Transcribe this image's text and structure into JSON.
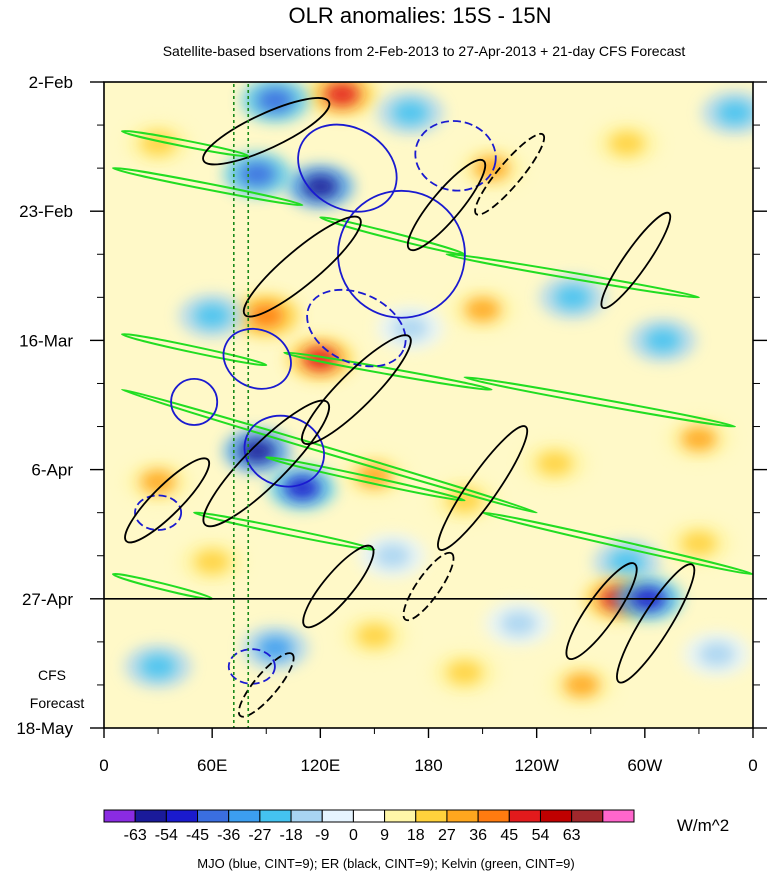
{
  "title": "OLR anomalies: 15S - 15N",
  "subtitle": "Satellite-based bservations from 2-Feb-2013 to 27-Apr-2013 + 21-day CFS Forecast",
  "forecast_label_line1": "CFS",
  "forecast_label_line2": "Forecast",
  "units": "W/m^2",
  "footer": "MJO (blue, CINT=9); ER (black, CINT=9); Kelvin (green, CINT=9)",
  "colors": {
    "mjo": "#1a1ad0",
    "er": "#000000",
    "kelvin": "#22dd22",
    "palette": [
      "#8a2be2",
      "#1a1a9a",
      "#1a1acd",
      "#3a6ee0",
      "#3c9ef0",
      "#44c3f0",
      "#a8d4f2",
      "#e6f4ff",
      "#ffffff",
      "#fff6a8",
      "#ffd23c",
      "#ffa71e",
      "#ff7b10",
      "#e31a1c",
      "#c00000",
      "#a0282c",
      "#ff66cc"
    ]
  },
  "chart_data": {
    "type": "heatmap",
    "title": "OLR anomalies: 15S - 15N",
    "x_ticks": [
      {
        "lon": 0,
        "label": "0"
      },
      {
        "lon": 60,
        "label": "60E"
      },
      {
        "lon": 120,
        "label": "120E"
      },
      {
        "lon": 180,
        "label": "180"
      },
      {
        "lon": 240,
        "label": "120W"
      },
      {
        "lon": 300,
        "label": "60W"
      },
      {
        "lon": 360,
        "label": "0"
      }
    ],
    "xlim": [
      0,
      360
    ],
    "y_ticks": [
      {
        "day": 0,
        "label": "2-Feb"
      },
      {
        "day": 21,
        "label": "23-Feb"
      },
      {
        "day": 42,
        "label": "16-Mar"
      },
      {
        "day": 63,
        "label": "6-Apr"
      },
      {
        "day": 84,
        "label": "27-Apr"
      },
      {
        "day": 105,
        "label": "18-May"
      }
    ],
    "ylim": [
      0,
      105
    ],
    "observation_end_day": 84,
    "reference_lons": [
      72,
      80
    ],
    "colorbar_levels": [
      -63,
      -54,
      -45,
      -36,
      -27,
      -18,
      -9,
      0,
      9,
      18,
      27,
      36,
      45,
      54,
      63
    ],
    "colorbar_labels": [
      "-63",
      "-54",
      "-45",
      "-36",
      "-27",
      "-18",
      "-9",
      "0",
      "9",
      "18",
      "27",
      "36",
      "45",
      "54",
      "63"
    ],
    "anomaly_blobs": [
      {
        "lon": 132,
        "day": 2,
        "v": 45
      },
      {
        "lon": 95,
        "day": 3,
        "v": -40
      },
      {
        "lon": 120,
        "day": 17,
        "v": -63
      },
      {
        "lon": 85,
        "day": 15,
        "v": -40
      },
      {
        "lon": 30,
        "day": 10,
        "v": 25
      },
      {
        "lon": 170,
        "day": 5,
        "v": -27
      },
      {
        "lon": 215,
        "day": 14,
        "v": 27
      },
      {
        "lon": 290,
        "day": 10,
        "v": 20
      },
      {
        "lon": 350,
        "day": 5,
        "v": -20
      },
      {
        "lon": 260,
        "day": 35,
        "v": -27
      },
      {
        "lon": 120,
        "day": 45,
        "v": 45
      },
      {
        "lon": 90,
        "day": 38,
        "v": 36
      },
      {
        "lon": 60,
        "day": 38,
        "v": -27
      },
      {
        "lon": 170,
        "day": 40,
        "v": -18
      },
      {
        "lon": 210,
        "day": 37,
        "v": 27
      },
      {
        "lon": 310,
        "day": 42,
        "v": -27
      },
      {
        "lon": 85,
        "day": 60,
        "v": -63
      },
      {
        "lon": 110,
        "day": 66,
        "v": -54
      },
      {
        "lon": 30,
        "day": 65,
        "v": 27
      },
      {
        "lon": 150,
        "day": 64,
        "v": 27
      },
      {
        "lon": 200,
        "day": 68,
        "v": 18
      },
      {
        "lon": 250,
        "day": 62,
        "v": 18
      },
      {
        "lon": 330,
        "day": 58,
        "v": 27
      },
      {
        "lon": 290,
        "day": 78,
        "v": -27
      },
      {
        "lon": 160,
        "day": 77,
        "v": -18
      },
      {
        "lon": 60,
        "day": 78,
        "v": 18
      },
      {
        "lon": 285,
        "day": 84,
        "v": 45
      },
      {
        "lon": 302,
        "day": 84,
        "v": -54
      },
      {
        "lon": 265,
        "day": 98,
        "v": 27
      },
      {
        "lon": 150,
        "day": 90,
        "v": 18
      },
      {
        "lon": 30,
        "day": 95,
        "v": -27
      },
      {
        "lon": 95,
        "day": 92,
        "v": -36
      },
      {
        "lon": 200,
        "day": 96,
        "v": 18
      },
      {
        "lon": 230,
        "day": 88,
        "v": -18
      },
      {
        "lon": 340,
        "day": 93,
        "v": -18
      },
      {
        "lon": 330,
        "day": 75,
        "v": 18
      }
    ],
    "contours": [
      {
        "type": "mjo",
        "lon": 135,
        "day": 14,
        "rx": 18,
        "ry": 14,
        "rot": 30
      },
      {
        "type": "mjo",
        "lon": 165,
        "day": 28,
        "rx": 22,
        "ry": 22,
        "rot": 35
      },
      {
        "type": "mjo",
        "lon": 100,
        "day": 60,
        "rx": 14,
        "ry": 12,
        "rot": 20
      },
      {
        "type": "mjo",
        "lon": 50,
        "day": 52,
        "rx": 8,
        "ry": 8,
        "rot": 0
      },
      {
        "type": "mjo",
        "lon": 85,
        "day": 45,
        "rx": 12,
        "ry": 10,
        "rot": 25
      },
      {
        "type": "mjo",
        "lon": 195,
        "day": 12,
        "rx": 14,
        "ry": 12,
        "rot": 10,
        "dash": true
      },
      {
        "type": "mjo",
        "lon": 140,
        "day": 40,
        "rx": 18,
        "ry": 12,
        "rot": 25,
        "dash": true
      },
      {
        "type": "mjo",
        "lon": 82,
        "day": 95,
        "rx": 8,
        "ry": 6,
        "rot": 0,
        "dash": true
      },
      {
        "type": "mjo",
        "lon": 30,
        "day": 70,
        "rx": 8,
        "ry": 6,
        "rot": 0,
        "dash": true
      },
      {
        "type": "er",
        "lon": 90,
        "day": 8,
        "rx": 24,
        "ry": 6,
        "rot": -25
      },
      {
        "type": "er",
        "lon": 190,
        "day": 20,
        "rx": 20,
        "ry": 5,
        "rot": -50
      },
      {
        "type": "er",
        "lon": 225,
        "day": 15,
        "rx": 18,
        "ry": 4,
        "rot": -50,
        "dash": true
      },
      {
        "type": "er",
        "lon": 110,
        "day": 30,
        "rx": 26,
        "ry": 6,
        "rot": -40
      },
      {
        "type": "er",
        "lon": 295,
        "day": 29,
        "rx": 20,
        "ry": 4,
        "rot": -55
      },
      {
        "type": "er",
        "lon": 140,
        "day": 50,
        "rx": 26,
        "ry": 6,
        "rot": -45
      },
      {
        "type": "er",
        "lon": 90,
        "day": 62,
        "rx": 30,
        "ry": 7,
        "rot": -45
      },
      {
        "type": "er",
        "lon": 35,
        "day": 68,
        "rx": 20,
        "ry": 5,
        "rot": -45
      },
      {
        "type": "er",
        "lon": 210,
        "day": 66,
        "rx": 26,
        "ry": 5,
        "rot": -55
      },
      {
        "type": "er",
        "lon": 130,
        "day": 82,
        "rx": 18,
        "ry": 5,
        "rot": -50
      },
      {
        "type": "er",
        "lon": 180,
        "day": 82,
        "rx": 14,
        "ry": 4,
        "rot": -55,
        "dash": true
      },
      {
        "type": "er",
        "lon": 276,
        "day": 86,
        "rx": 20,
        "ry": 5,
        "rot": -55
      },
      {
        "type": "er",
        "lon": 306,
        "day": 88,
        "rx": 24,
        "ry": 5,
        "rot": -58
      },
      {
        "type": "er",
        "lon": 90,
        "day": 98,
        "rx": 14,
        "ry": 4,
        "rot": -50,
        "dash": true
      }
    ],
    "kelvin_bands": [
      {
        "lon0": 10,
        "day0": 8,
        "lon1": 80,
        "day1": 12
      },
      {
        "lon0": 5,
        "day0": 14,
        "lon1": 110,
        "day1": 20
      },
      {
        "lon0": 120,
        "day0": 22,
        "lon1": 200,
        "day1": 28
      },
      {
        "lon0": 190,
        "day0": 28,
        "lon1": 330,
        "day1": 35
      },
      {
        "lon0": 10,
        "day0": 41,
        "lon1": 90,
        "day1": 46
      },
      {
        "lon0": 100,
        "day0": 44,
        "lon1": 215,
        "day1": 50
      },
      {
        "lon0": 200,
        "day0": 48,
        "lon1": 350,
        "day1": 56
      },
      {
        "lon0": 10,
        "day0": 50,
        "lon1": 240,
        "day1": 70
      },
      {
        "lon0": 90,
        "day0": 61,
        "lon1": 200,
        "day1": 68
      },
      {
        "lon0": 210,
        "day0": 70,
        "lon1": 360,
        "day1": 80
      },
      {
        "lon0": 5,
        "day0": 80,
        "lon1": 60,
        "day1": 84
      },
      {
        "lon0": 50,
        "day0": 70,
        "lon1": 150,
        "day1": 76
      }
    ]
  }
}
